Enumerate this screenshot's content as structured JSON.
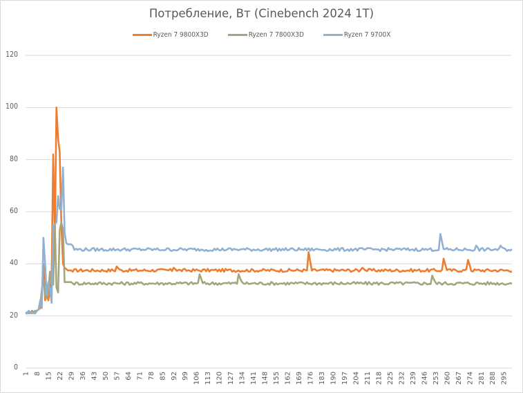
{
  "chart_data": {
    "type": "line",
    "title": "Потребление, Вт (Cinebench 2024 1T)",
    "xlabel": "",
    "ylabel": "",
    "ylim": [
      0,
      120
    ],
    "yticks": [
      0,
      20,
      40,
      60,
      80,
      100,
      120
    ],
    "grid": true,
    "legend_position": "top",
    "x_start": 1,
    "x_end": 300,
    "xtick_labels": [
      "1",
      "8",
      "15",
      "22",
      "29",
      "36",
      "43",
      "50",
      "57",
      "64",
      "71",
      "78",
      "85",
      "92",
      "99",
      "106",
      "113",
      "120",
      "127",
      "134",
      "141",
      "148",
      "155",
      "162",
      "169",
      "176",
      "183",
      "190",
      "197",
      "204",
      "211",
      "218",
      "225",
      "232",
      "239",
      "246",
      "253",
      "260",
      "267",
      "274",
      "281",
      "288",
      "295"
    ],
    "series": [
      {
        "name": "Ryzen 7 9800X3D",
        "color": "#ED7D31",
        "baseline": 37.5,
        "head": [
          21,
          21,
          21.5,
          21,
          22,
          21.5,
          21.5,
          22,
          22.5,
          23,
          28,
          40,
          26,
          28,
          26,
          30,
          35,
          82,
          50,
          100,
          88,
          83,
          55,
          40,
          38.5,
          38,
          37.5,
          37.5,
          37.5,
          37
        ],
        "spikes": {
          "57": 39,
          "92": 38.5,
          "175": 44.5,
          "208": 38.5,
          "258": 42,
          "273": 41.5
        }
      },
      {
        "name": "Ryzen 7 7800X3D",
        "color": "#A5A57C",
        "baseline": 32.5,
        "head": [
          21,
          21.5,
          21,
          21.5,
          21,
          21.5,
          22,
          22,
          22.5,
          24,
          30,
          34,
          28,
          27,
          30,
          37,
          33,
          32,
          55,
          31,
          29,
          53,
          56,
          53,
          33,
          33,
          33,
          33,
          33,
          32.5
        ],
        "spikes": {
          "108": 36,
          "132": 36,
          "251": 35.5
        }
      },
      {
        "name": "Ryzen 7 9700X",
        "color": "#91B1D3",
        "baseline": 45.5,
        "head": [
          21,
          21,
          22,
          21,
          21.5,
          21,
          21,
          22,
          22.5,
          26,
          23,
          50,
          40,
          28,
          33,
          30,
          25,
          55,
          55,
          56,
          66,
          61,
          61,
          77,
          52,
          48,
          47.5,
          47.5,
          47.5,
          47
        ],
        "spikes": {
          "256": 51.5,
          "278": 47,
          "293": 47
        }
      }
    ]
  }
}
